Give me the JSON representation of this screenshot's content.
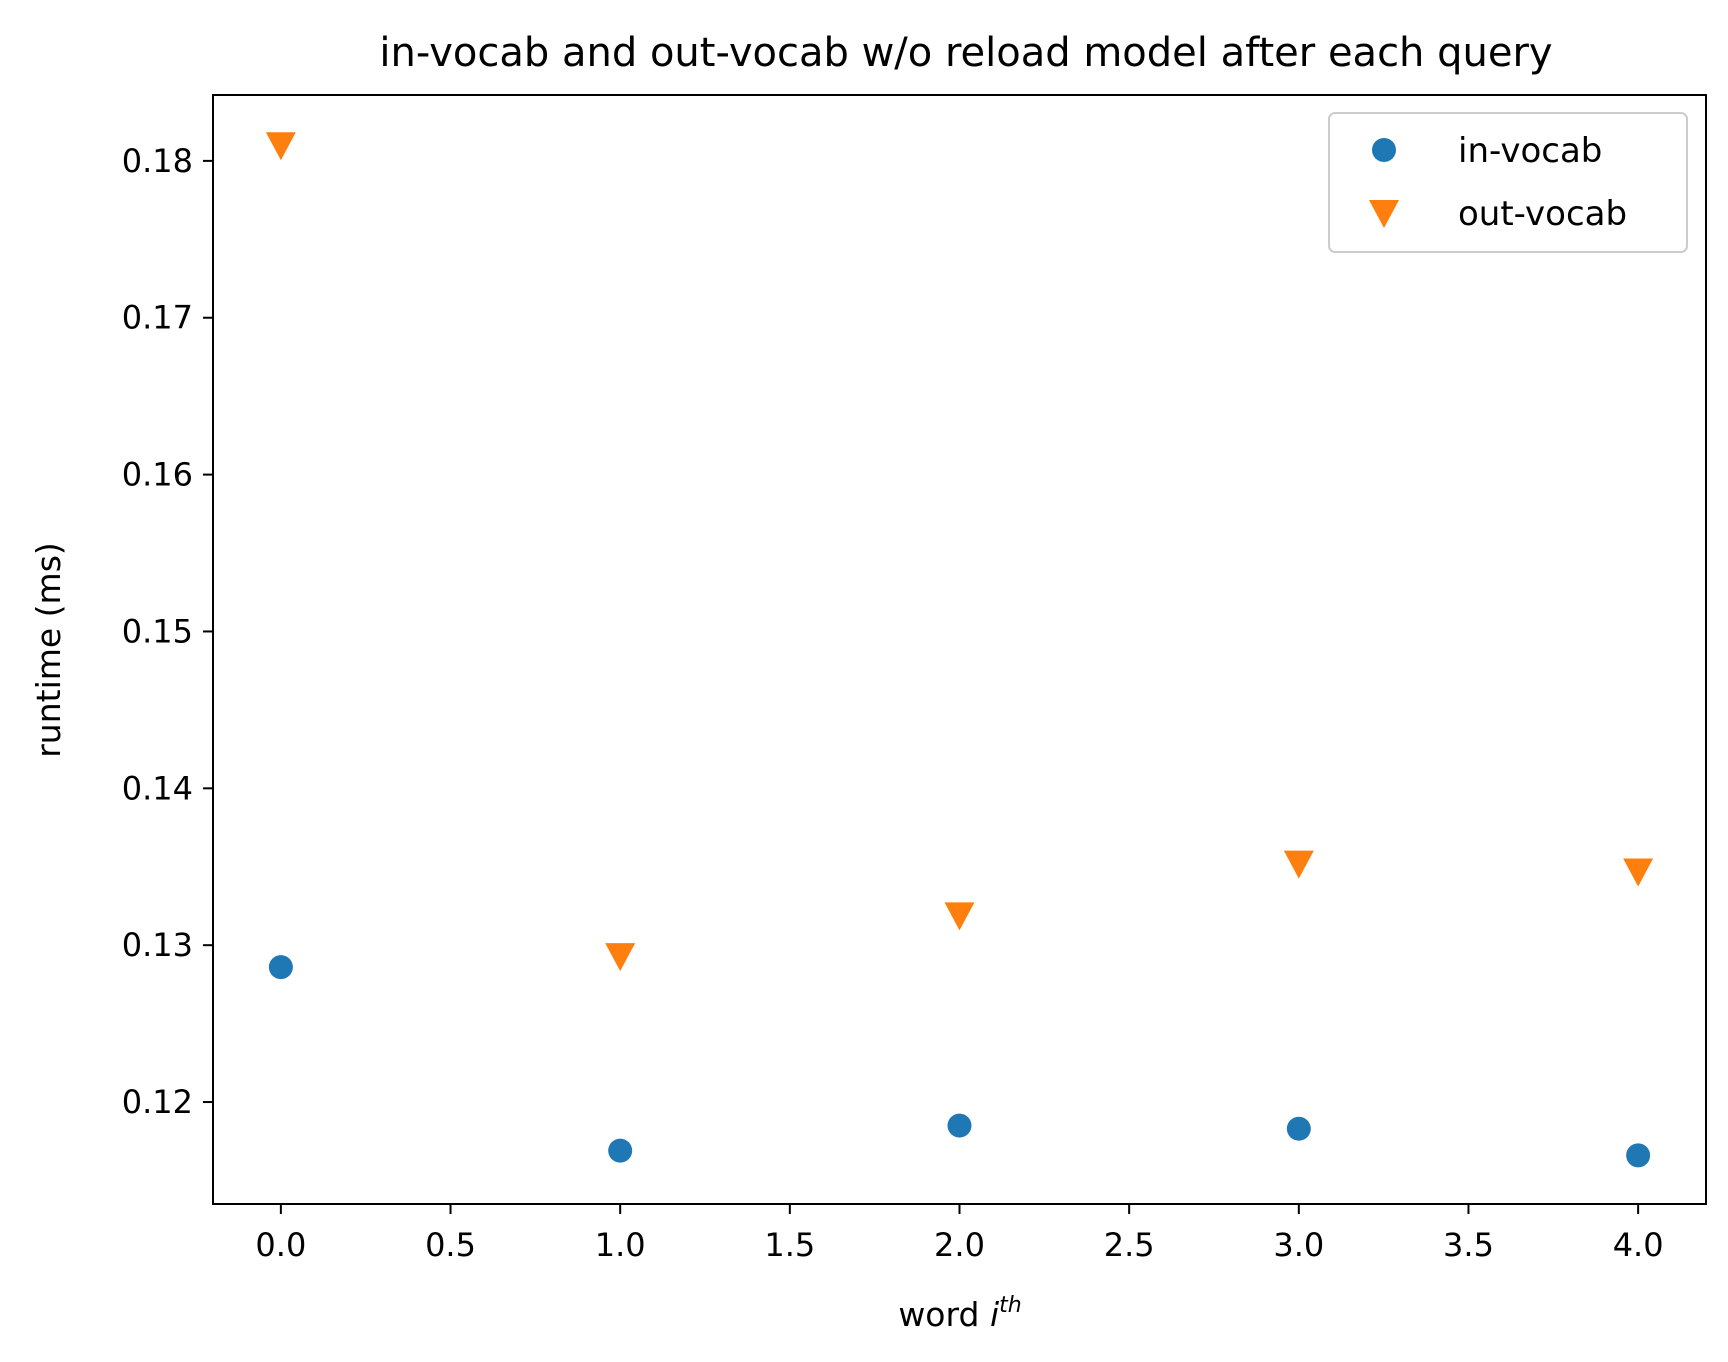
{
  "chart_data": {
    "type": "scatter",
    "title": "in-vocab and out-vocab w/o reload model after each query",
    "xlabel": "word",
    "xlabel_math": "i",
    "xlabel_sup": "th",
    "ylabel": "runtime (ms)",
    "xlim": [
      -0.2,
      4.2
    ],
    "ylim": [
      0.1135,
      0.1842
    ],
    "xticks": [
      "0.0",
      "0.5",
      "1.0",
      "1.5",
      "2.0",
      "2.5",
      "3.0",
      "3.5",
      "4.0"
    ],
    "yticks": [
      "0.12",
      "0.13",
      "0.14",
      "0.15",
      "0.16",
      "0.17",
      "0.18"
    ],
    "grid": false,
    "legend_position": "top-right",
    "series": [
      {
        "name": "in-vocab",
        "marker": "circle",
        "color": "#1f77b4",
        "x": [
          0,
          1,
          2,
          3,
          4
        ],
        "y": [
          0.1286,
          0.1169,
          0.1185,
          0.1183,
          0.1166
        ]
      },
      {
        "name": "out-vocab",
        "marker": "triangle-down",
        "color": "#ff7f0e",
        "x": [
          0,
          1,
          2,
          3,
          4
        ],
        "y": [
          0.181,
          0.1293,
          0.1319,
          0.1352,
          0.1347
        ]
      }
    ]
  }
}
